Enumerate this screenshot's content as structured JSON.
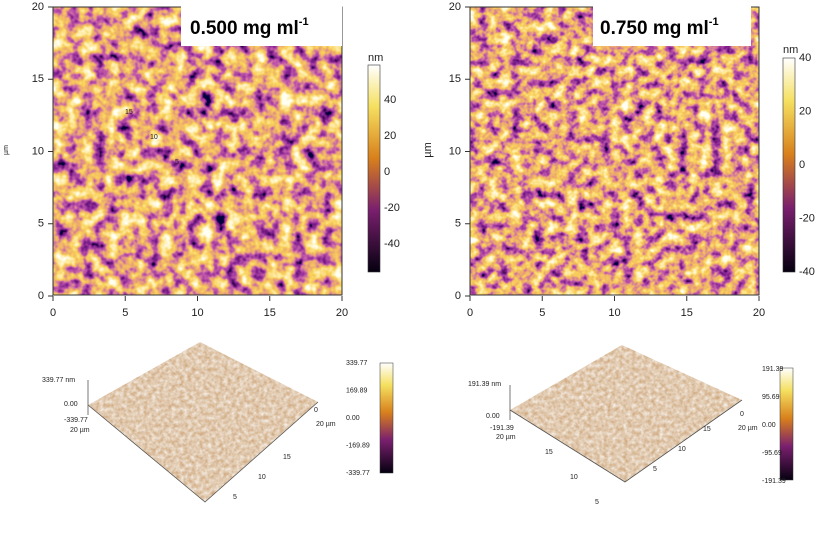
{
  "maps": [
    {
      "label": "0.500 mg ml",
      "label_sup": "-1",
      "y_axis_label": "µm",
      "xticks": [
        "0",
        "5",
        "10",
        "15",
        "20"
      ],
      "yticks": [
        "0",
        "5",
        "10",
        "15",
        "20"
      ],
      "colorbar_unit": "nm",
      "colorbar_ticks": [
        "40",
        "20",
        "0",
        "-20",
        "-40"
      ]
    },
    {
      "label": "0.750 mg ml",
      "label_sup": "-1",
      "y_axis_label": "µm",
      "xticks": [
        "0",
        "5",
        "10",
        "15",
        "20"
      ],
      "yticks": [
        "0",
        "5",
        "10",
        "15",
        "20"
      ],
      "colorbar_unit": "nm",
      "colorbar_ticks": [
        "40",
        "20",
        "0",
        "-20",
        "-40"
      ]
    }
  ],
  "surfaces": [
    {
      "z_top": "339.77 nm",
      "z_mid": "0.00",
      "z_bottom": "-339.77",
      "x_end": "20 µm",
      "y_end": "20 µm",
      "zero": "0",
      "depth_ticks": [
        "15",
        "10",
        "5"
      ],
      "side_ticks": [
        "5",
        "10",
        "15"
      ],
      "colorbar_ticks": [
        "339.77",
        "169.89",
        "0.00",
        "-169.89",
        "-339.77"
      ]
    },
    {
      "z_top": "191.39 nm",
      "z_mid": "0.00",
      "z_bottom": "-191.39",
      "x_end": "20 µm",
      "y_end": "20 µm",
      "zero": "0",
      "depth_ticks": [
        "15",
        "10",
        "5"
      ],
      "side_ticks": [
        "5",
        "10",
        "15"
      ],
      "colorbar_ticks": [
        "191.39",
        "95.69",
        "0.00",
        "-95.69",
        "-191.39"
      ]
    }
  ]
}
